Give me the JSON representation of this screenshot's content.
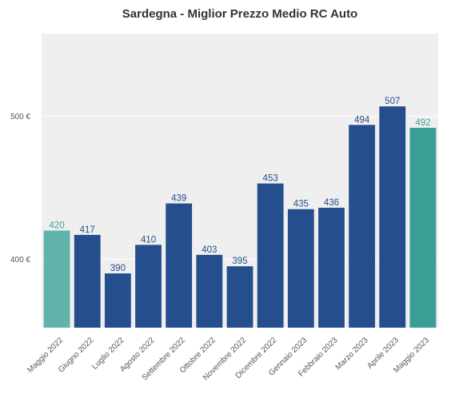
{
  "chart_data": {
    "type": "bar",
    "title": "Sardegna - Miglior Prezzo Medio RC Auto",
    "xlabel": "",
    "ylabel": "",
    "categories": [
      "Maggio 2022",
      "Giugno 2022",
      "Luglio 2022",
      "Agosto 2022",
      "Settembre 2022",
      "Ottobre 2022",
      "Novembre 2022",
      "Dicembre 2022",
      "Gennaio 2023",
      "Febbraio 2023",
      "Marzo 2023",
      "Aprile 2023",
      "Maggio 2023"
    ],
    "values": [
      420,
      417,
      390,
      410,
      439,
      403,
      395,
      453,
      435,
      436,
      494,
      507,
      492
    ],
    "data_labels": [
      "420",
      "417",
      "390",
      "410",
      "439",
      "403",
      "395",
      "453",
      "435",
      "436",
      "494",
      "507",
      "492"
    ],
    "ylim": [
      352,
      558
    ],
    "yticks": [
      400,
      500
    ],
    "ytick_labels": [
      "400 €",
      "500 €"
    ],
    "grid": true,
    "legend": "none",
    "colors": {
      "bars": [
        "#5fb3ab",
        "#244e8c",
        "#244e8c",
        "#244e8c",
        "#244e8c",
        "#244e8c",
        "#244e8c",
        "#244e8c",
        "#244e8c",
        "#244e8c",
        "#244e8c",
        "#244e8c",
        "#3a9e96"
      ],
      "labels": [
        "#3f9e95",
        "#244e8c",
        "#244e8c",
        "#244e8c",
        "#244e8c",
        "#244e8c",
        "#244e8c",
        "#244e8c",
        "#244e8c",
        "#244e8c",
        "#244e8c",
        "#244e8c",
        "#3a9e96"
      ],
      "plot_background": "#efefef",
      "gridline": "#ffffff"
    }
  }
}
